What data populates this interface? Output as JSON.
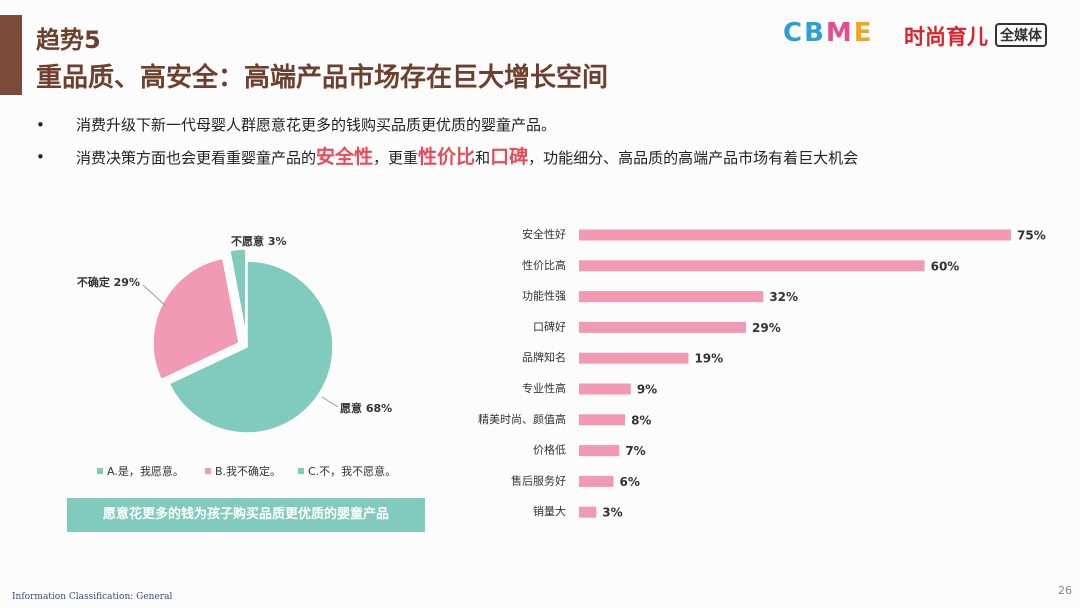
{
  "header": {
    "title": "趋势5",
    "subtitle": "重品质、高安全：高端产品市场存在巨大增长空间",
    "logos": [
      "CBME",
      "时尚育儿",
      "全媒体"
    ]
  },
  "bullets": [
    {
      "segments": [
        {
          "text": "消费升级下新一代母婴人群愿意花更多的钱购买品质更优质的婴童产品。",
          "emphasis": false
        }
      ]
    },
    {
      "segments": [
        {
          "text": "消费决策方面也会更看重婴童产品的",
          "emphasis": false
        },
        {
          "text": "安全性",
          "emphasis": true
        },
        {
          "text": "，更重",
          "emphasis": false
        },
        {
          "text": "性价比",
          "emphasis": true
        },
        {
          "text": "和",
          "emphasis": false
        },
        {
          "text": "口碑",
          "emphasis": true
        },
        {
          "text": "，功能细分、高品质的高端产品市场有着巨大机会",
          "emphasis": false
        }
      ]
    }
  ],
  "chart_data": [
    {
      "type": "pie",
      "categories": [
        "A.是，我愿意。",
        "B.我不确定。",
        "C.不，我不愿意。"
      ],
      "values": [
        68,
        29,
        3
      ],
      "value_labels": [
        "愿意 68%",
        "不确定 29%",
        "不愿意 3%"
      ],
      "colors": [
        "#80cbbd",
        "#f29ab3",
        "#80cbbd"
      ],
      "legend": "bottom",
      "caption": "愿意花更多的钱为孩子购买品质更优质的婴童产品"
    },
    {
      "type": "hbar",
      "categories": [
        "安全性好",
        "性价比高",
        "功能性强",
        "口碑好",
        "品牌知名",
        "专业性高",
        "精美时尚、颜值高",
        "价格低",
        "售后服务好",
        "销量大"
      ],
      "values": [
        75,
        60,
        32,
        29,
        19,
        9,
        8,
        7,
        6,
        3
      ],
      "value_labels": [
        "75%",
        "60%",
        "32%",
        "29%",
        "19%",
        "9%",
        "8%",
        "7%",
        "6%",
        "3%"
      ],
      "color": "#f29ab3",
      "xlim": [
        0,
        75
      ]
    }
  ],
  "footer": {
    "classification": "Information Classification: General",
    "page": "26"
  }
}
